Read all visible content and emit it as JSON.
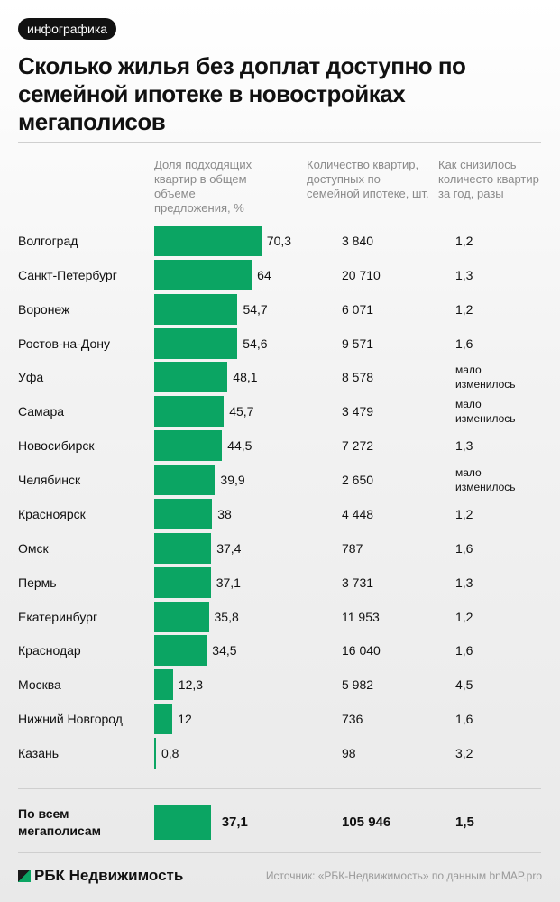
{
  "badge": "инфографика",
  "title": "Сколько жилья без доплат доступно по семейной ипотеке в новостройках мегаполисов",
  "chart_data": {
    "type": "bar",
    "orientation": "horizontal",
    "columns": [
      "Доля подходящих квартир в общем объеме предложения, %",
      "Количество квартир, доступных по семейной ипотеке, шт.",
      "Как снизилось количесто квартир за год, разы"
    ],
    "categories": [
      "Волгоград",
      "Санкт-Петербург",
      "Воронеж",
      "Ростов-на-Дону",
      "Уфа",
      "Самара",
      "Новосибирск",
      "Челябинск",
      "Красноярск",
      "Омск",
      "Пермь",
      "Екатеринбург",
      "Краснодар",
      "Москва",
      "Нижний Новгород",
      "Казань"
    ],
    "values": [
      70.3,
      64,
      54.7,
      54.6,
      48.1,
      45.7,
      44.5,
      39.9,
      38,
      37.4,
      37.1,
      35.8,
      34.5,
      12.3,
      12,
      0.8
    ],
    "value_labels": [
      "70,3",
      "64",
      "54,7",
      "54,6",
      "48,1",
      "45,7",
      "44,5",
      "39,9",
      "38",
      "37,4",
      "37,1",
      "35,8",
      "34,5",
      "12,3",
      "12",
      "0,8"
    ],
    "counts": [
      "3 840",
      "20 710",
      "6 071",
      "9 571",
      "8 578",
      "3 479",
      "7 272",
      "2 650",
      "4 448",
      "787",
      "3 731",
      "11 953",
      "16 040",
      "5 982",
      "736",
      "98"
    ],
    "ratios": [
      "1,2",
      "1,3",
      "1,2",
      "1,6",
      "мало изменилось",
      "мало изменилось",
      "1,3",
      "мало изменилось",
      "1,2",
      "1,6",
      "1,3",
      "1,2",
      "1,6",
      "4,5",
      "1,6",
      "3,2"
    ],
    "total": {
      "label": "По всем мегаполисам",
      "value": 37.1,
      "value_label": "37,1",
      "count": "105 946",
      "ratio": "1,5"
    },
    "bar_color": "#0ba563"
  },
  "footer": {
    "logo": "РБК Недвижимость",
    "source": "Источник: «РБК-Недвижимость» по данным bnMAP.pro"
  }
}
